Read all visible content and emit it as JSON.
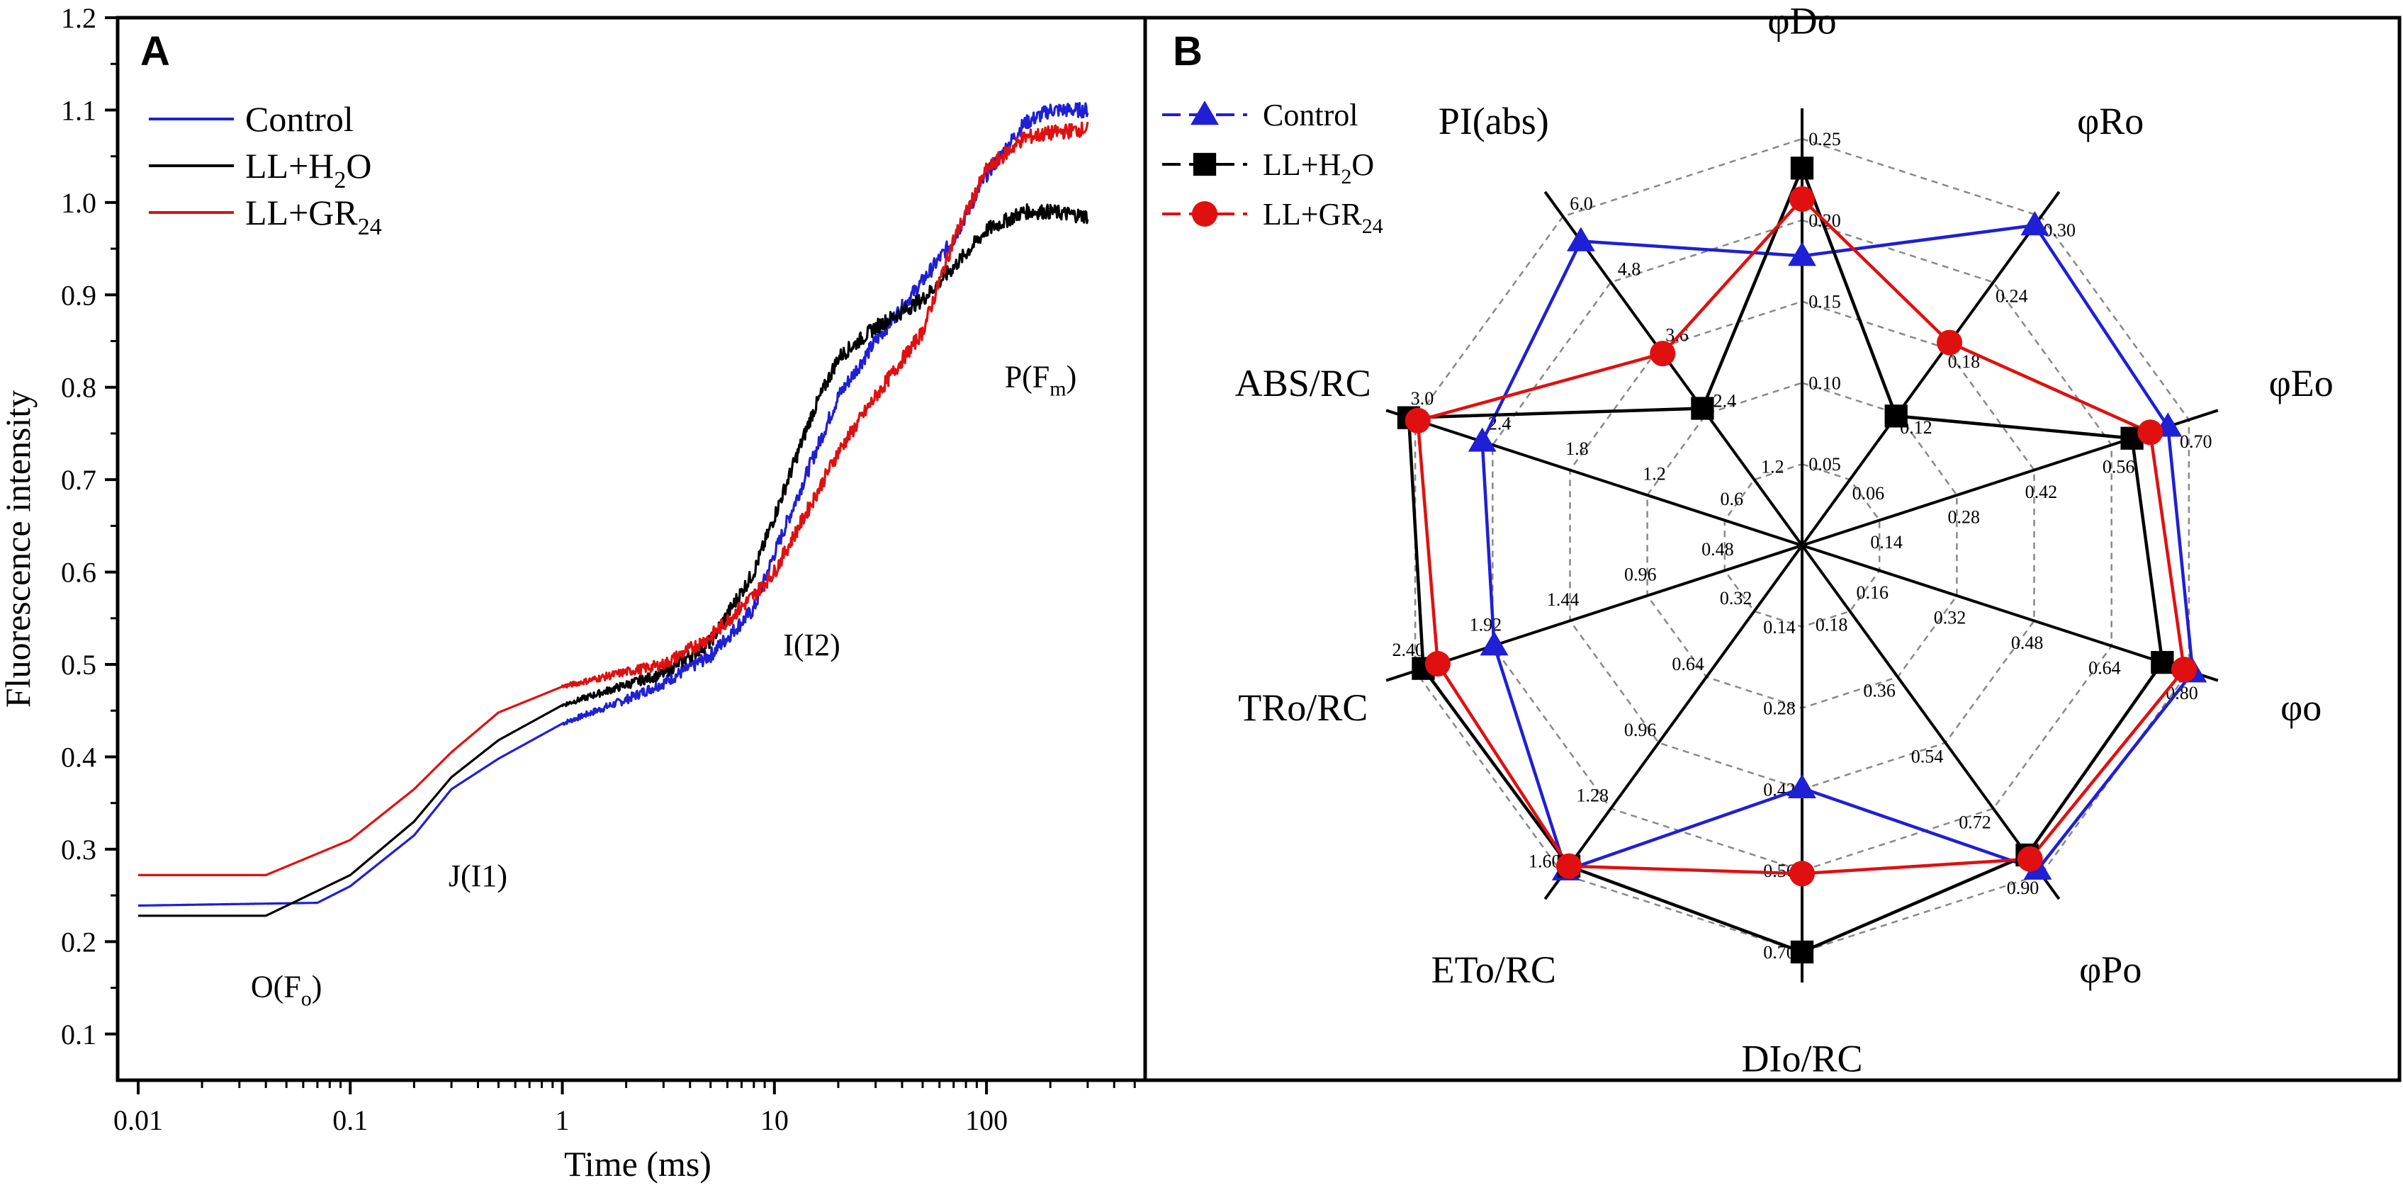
{
  "chart_data": [
    {
      "panel_letter": "A",
      "type": "line",
      "xlabel": "Time (ms)",
      "ylabel": "Fluorescence intensity",
      "x_scale": "log",
      "xlim": [
        0.008,
        560
      ],
      "ylim": [
        0.05,
        1.2
      ],
      "x_ticks": [
        0.01,
        0.1,
        1,
        10,
        100
      ],
      "x_tick_labels": [
        "0.01",
        "0.1",
        "1",
        "10",
        "100"
      ],
      "y_ticks": [
        0.1,
        0.2,
        0.3,
        0.4,
        0.5,
        0.6,
        0.7,
        0.8,
        0.9,
        1.0,
        1.1,
        1.2
      ],
      "y_tick_labels": [
        "0.1",
        "0.2",
        "0.3",
        "0.4",
        "0.5",
        "0.6",
        "0.7",
        "0.8",
        "0.9",
        "1.0",
        "1.1",
        "1.2"
      ],
      "legend": {
        "placement": "top-left"
      },
      "series": [
        {
          "name": "Control",
          "color": "#1f1fd6",
          "x": [
            0.01,
            0.07,
            0.1,
            0.2,
            0.3,
            0.5,
            1,
            2,
            3,
            5,
            8,
            10,
            15,
            20,
            30,
            50,
            70,
            100,
            150,
            200,
            300
          ],
          "y": [
            0.239,
            0.242,
            0.26,
            0.315,
            0.365,
            0.398,
            0.436,
            0.462,
            0.48,
            0.51,
            0.56,
            0.62,
            0.72,
            0.79,
            0.85,
            0.915,
            0.96,
            1.03,
            1.085,
            1.1,
            1.1
          ]
        },
        {
          "name": "LL+H2O",
          "color": "#000000",
          "x": [
            0.01,
            0.04,
            0.1,
            0.2,
            0.3,
            0.5,
            1,
            2,
            3,
            5,
            8,
            10,
            15,
            20,
            30,
            50,
            70,
            100,
            150,
            200,
            300
          ],
          "y": [
            0.228,
            0.228,
            0.272,
            0.33,
            0.378,
            0.418,
            0.456,
            0.478,
            0.49,
            0.525,
            0.6,
            0.66,
            0.77,
            0.832,
            0.865,
            0.895,
            0.93,
            0.97,
            0.99,
            0.99,
            0.985
          ]
        },
        {
          "name": "LL+GR24",
          "color": "#e01010",
          "x": [
            0.01,
            0.04,
            0.1,
            0.2,
            0.3,
            0.5,
            1,
            2,
            3,
            5,
            8,
            10,
            15,
            20,
            30,
            50,
            70,
            100,
            150,
            200,
            300
          ],
          "y": [
            0.272,
            0.272,
            0.31,
            0.365,
            0.405,
            0.448,
            0.476,
            0.492,
            0.5,
            0.53,
            0.575,
            0.6,
            0.675,
            0.73,
            0.79,
            0.86,
            0.96,
            1.035,
            1.07,
            1.075,
            1.08
          ]
        }
      ],
      "annotations": [
        {
          "text": "O(F",
          "sub": "o",
          "close": ")",
          "x": 0.05,
          "y": 0.14
        },
        {
          "text": "J(I1)",
          "sub": "",
          "close": "",
          "x": 0.4,
          "y": 0.26
        },
        {
          "text": "I(I2)",
          "sub": "",
          "close": "",
          "x": 15,
          "y": 0.51
        },
        {
          "text": "P(F",
          "sub": "m",
          "close": ")",
          "x": 180,
          "y": 0.8
        }
      ]
    },
    {
      "panel_letter": "B",
      "type": "radar",
      "legend": {
        "placement": "top-left"
      },
      "axes": [
        {
          "name": "φDo",
          "min": 0,
          "max": 0.25,
          "ticks": [
            "0.05",
            "0.10",
            "0.15",
            "0.20",
            "0.25"
          ]
        },
        {
          "name": "φRo",
          "min": 0,
          "max": 0.3,
          "ticks": [
            "0.06",
            "0.12",
            "0.18",
            "0.24",
            "0.30"
          ]
        },
        {
          "name": "φEo",
          "min": 0,
          "max": 0.7,
          "ticks": [
            "0.14",
            "0.28",
            "0.42",
            "0.56",
            "0.70"
          ]
        },
        {
          "name": "φo",
          "min": 0,
          "max": 0.8,
          "ticks": [
            "0.16",
            "0.32",
            "0.48",
            "0.64",
            "0.80"
          ]
        },
        {
          "name": "φPo",
          "min": 0,
          "max": 0.9,
          "ticks": [
            "0.18",
            "0.36",
            "0.54",
            "0.72",
            "0.90"
          ]
        },
        {
          "name": "DIo/RC",
          "min": 0,
          "max": 0.7,
          "ticks": [
            "0.14",
            "0.28",
            "0.42",
            "0.56",
            "0.70"
          ]
        },
        {
          "name": "ETo/RC",
          "min": 0,
          "max": 1.6,
          "ticks": [
            "0.32",
            "0.64",
            "0.96",
            "1.28",
            "1.60"
          ]
        },
        {
          "name": "TRo/RC",
          "min": 0,
          "max": 2.4,
          "ticks": [
            "0.48",
            "0.96",
            "1.44",
            "1.92",
            "2.40"
          ]
        },
        {
          "name": "ABS/RC",
          "min": 0,
          "max": 3.0,
          "ticks": [
            "0.6",
            "1.2",
            "1.8",
            "2.4",
            "3.0"
          ]
        },
        {
          "name": "PI(abs)",
          "min": 0,
          "max": 6.0,
          "ticks": [
            "1.2",
            "2.4",
            "3.6",
            "4.8",
            "6.0"
          ]
        }
      ],
      "series": [
        {
          "name": "Control",
          "color": "#1f1fd6",
          "marker": "triangle",
          "values": [
            0.178,
            0.292,
            0.662,
            0.808,
            0.887,
            0.418,
            1.58,
            1.91,
            2.48,
            5.55
          ]
        },
        {
          "name": "LL+H2O",
          "color": "#000000",
          "marker": "square",
          "values": [
            0.232,
            0.118,
            0.597,
            0.745,
            0.847,
            0.7,
            1.56,
            2.35,
            3.05,
            2.5
          ]
        },
        {
          "name": "LL+GR24",
          "color": "#e01010",
          "marker": "circle",
          "values": [
            0.213,
            0.185,
            0.63,
            0.79,
            0.858,
            0.565,
            1.56,
            2.26,
            2.98,
            3.5
          ]
        }
      ]
    }
  ]
}
